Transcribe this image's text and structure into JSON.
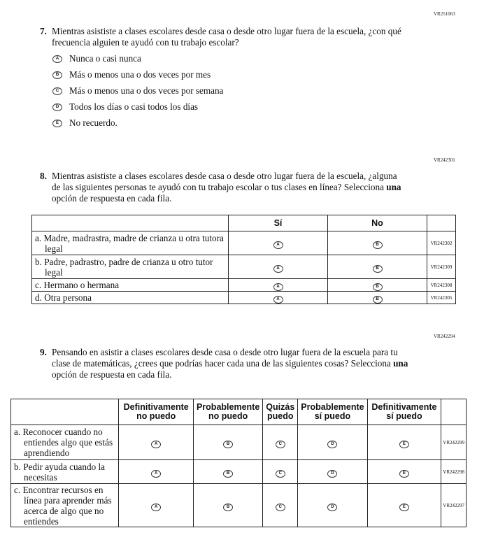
{
  "q7": {
    "code": "VR251063",
    "number": "7.",
    "text": "Mientras asististe a clases escolares desde casa o desde otro lugar fuera de la escuela, ¿con qué frecuencia alguien te ayudó con tu trabajo escolar?",
    "options": [
      {
        "letter": "A",
        "label": "Nunca o casi nunca"
      },
      {
        "letter": "B",
        "label": "Más o menos una o dos veces por mes"
      },
      {
        "letter": "C",
        "label": "Más o menos una o dos veces por semana"
      },
      {
        "letter": "D",
        "label": "Todos los días o casi todos los días"
      },
      {
        "letter": "E",
        "label": "No recuerdo."
      }
    ]
  },
  "q8": {
    "code": "VR242301",
    "number": "8.",
    "text_before": "Mientras asististe a clases escolares desde casa o desde otro lugar fuera de la escuela, ¿alguna de las siguientes personas te ayudó con tu trabajo escolar o tus clases en línea? Selecciona ",
    "text_bold": "una",
    "text_after": " opción de respuesta en cada fila.",
    "columns": [
      "Sí",
      "No"
    ],
    "letters": [
      "A",
      "B"
    ],
    "rows": [
      {
        "label": "a. Madre, madrastra, madre de crianza u otra tutora legal",
        "code": "VR242302"
      },
      {
        "label": "b. Padre, padrastro, padre de crianza u otro tutor legal",
        "code": "VR242309"
      },
      {
        "label": "c. Hermano o hermana",
        "code": "VR242308"
      },
      {
        "label": "d. Otra persona",
        "code": "VR242305"
      }
    ]
  },
  "q9": {
    "code": "VR242294",
    "number": "9.",
    "text_before": "Pensando en asistir a clases escolares desde casa o desde otro lugar fuera de la escuela para tu clase de matemáticas, ¿crees que podrías hacer cada una de las siguientes cosas? Selecciona ",
    "text_bold": "una",
    "text_after": " opción de respuesta en cada fila.",
    "columns": [
      [
        "Definitivamente",
        "no puedo"
      ],
      [
        "Probablemente",
        "no puedo"
      ],
      [
        "Quizás",
        "puedo"
      ],
      [
        "Probablemente",
        "sí puedo"
      ],
      [
        "Definitivamente",
        "sí puedo"
      ]
    ],
    "letters": [
      "A",
      "B",
      "C",
      "D",
      "E"
    ],
    "rows": [
      {
        "label": "a. Reconocer cuando no entiendes algo que estás aprendiendo",
        "code": "VR242299"
      },
      {
        "label": "b. Pedir ayuda cuando la necesitas",
        "code": "VR242298"
      },
      {
        "label": "c. Encontrar recursos en línea para aprender más acerca de algo que no entiendes",
        "code": "VR242297"
      }
    ]
  }
}
